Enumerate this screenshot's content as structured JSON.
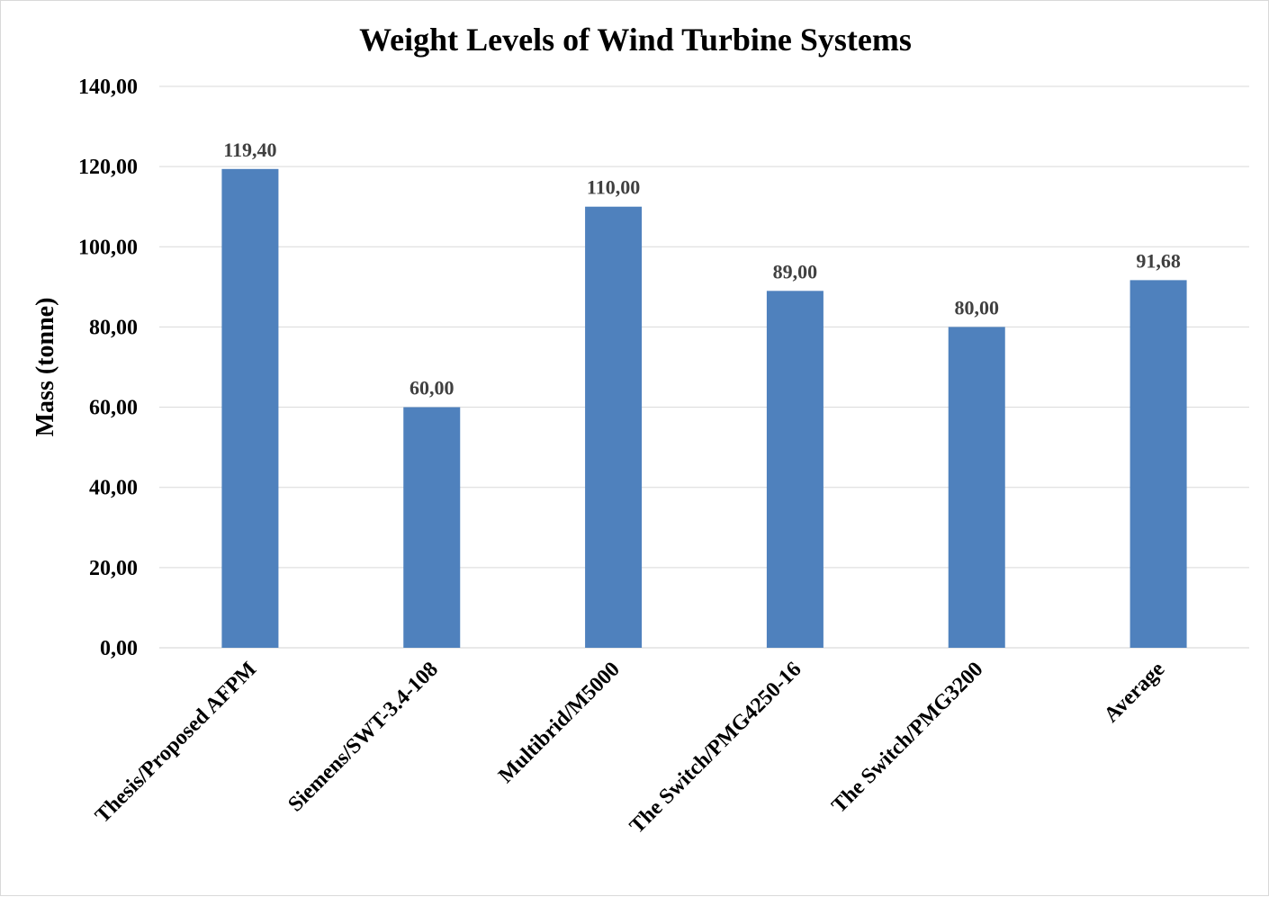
{
  "chart_data": {
    "type": "bar",
    "title": "Weight Levels of Wind Turbine Systems",
    "xlabel": "",
    "ylabel": "Mass (tonne)",
    "categories": [
      "Thesis/Proposed AFPM",
      "Siemens/SWT-3.4-108",
      "Multibrid/M5000",
      "The Switch/PMG4250-16",
      "The Switch/PMG3200",
      "Average"
    ],
    "values": [
      119.4,
      60.0,
      110.0,
      89.0,
      80.0,
      91.68
    ],
    "data_labels": [
      "119,40",
      "60,00",
      "110,00",
      "89,00",
      "80,00",
      "91,68"
    ],
    "ylim": [
      0,
      140
    ],
    "yticks": [
      0,
      20,
      40,
      60,
      80,
      100,
      120,
      140
    ],
    "ytick_labels": [
      "0,00",
      "20,00",
      "40,00",
      "60,00",
      "80,00",
      "100,00",
      "120,00",
      "140,00"
    ],
    "grid": true,
    "legend": "none",
    "bar_color": "#4f81bd"
  }
}
